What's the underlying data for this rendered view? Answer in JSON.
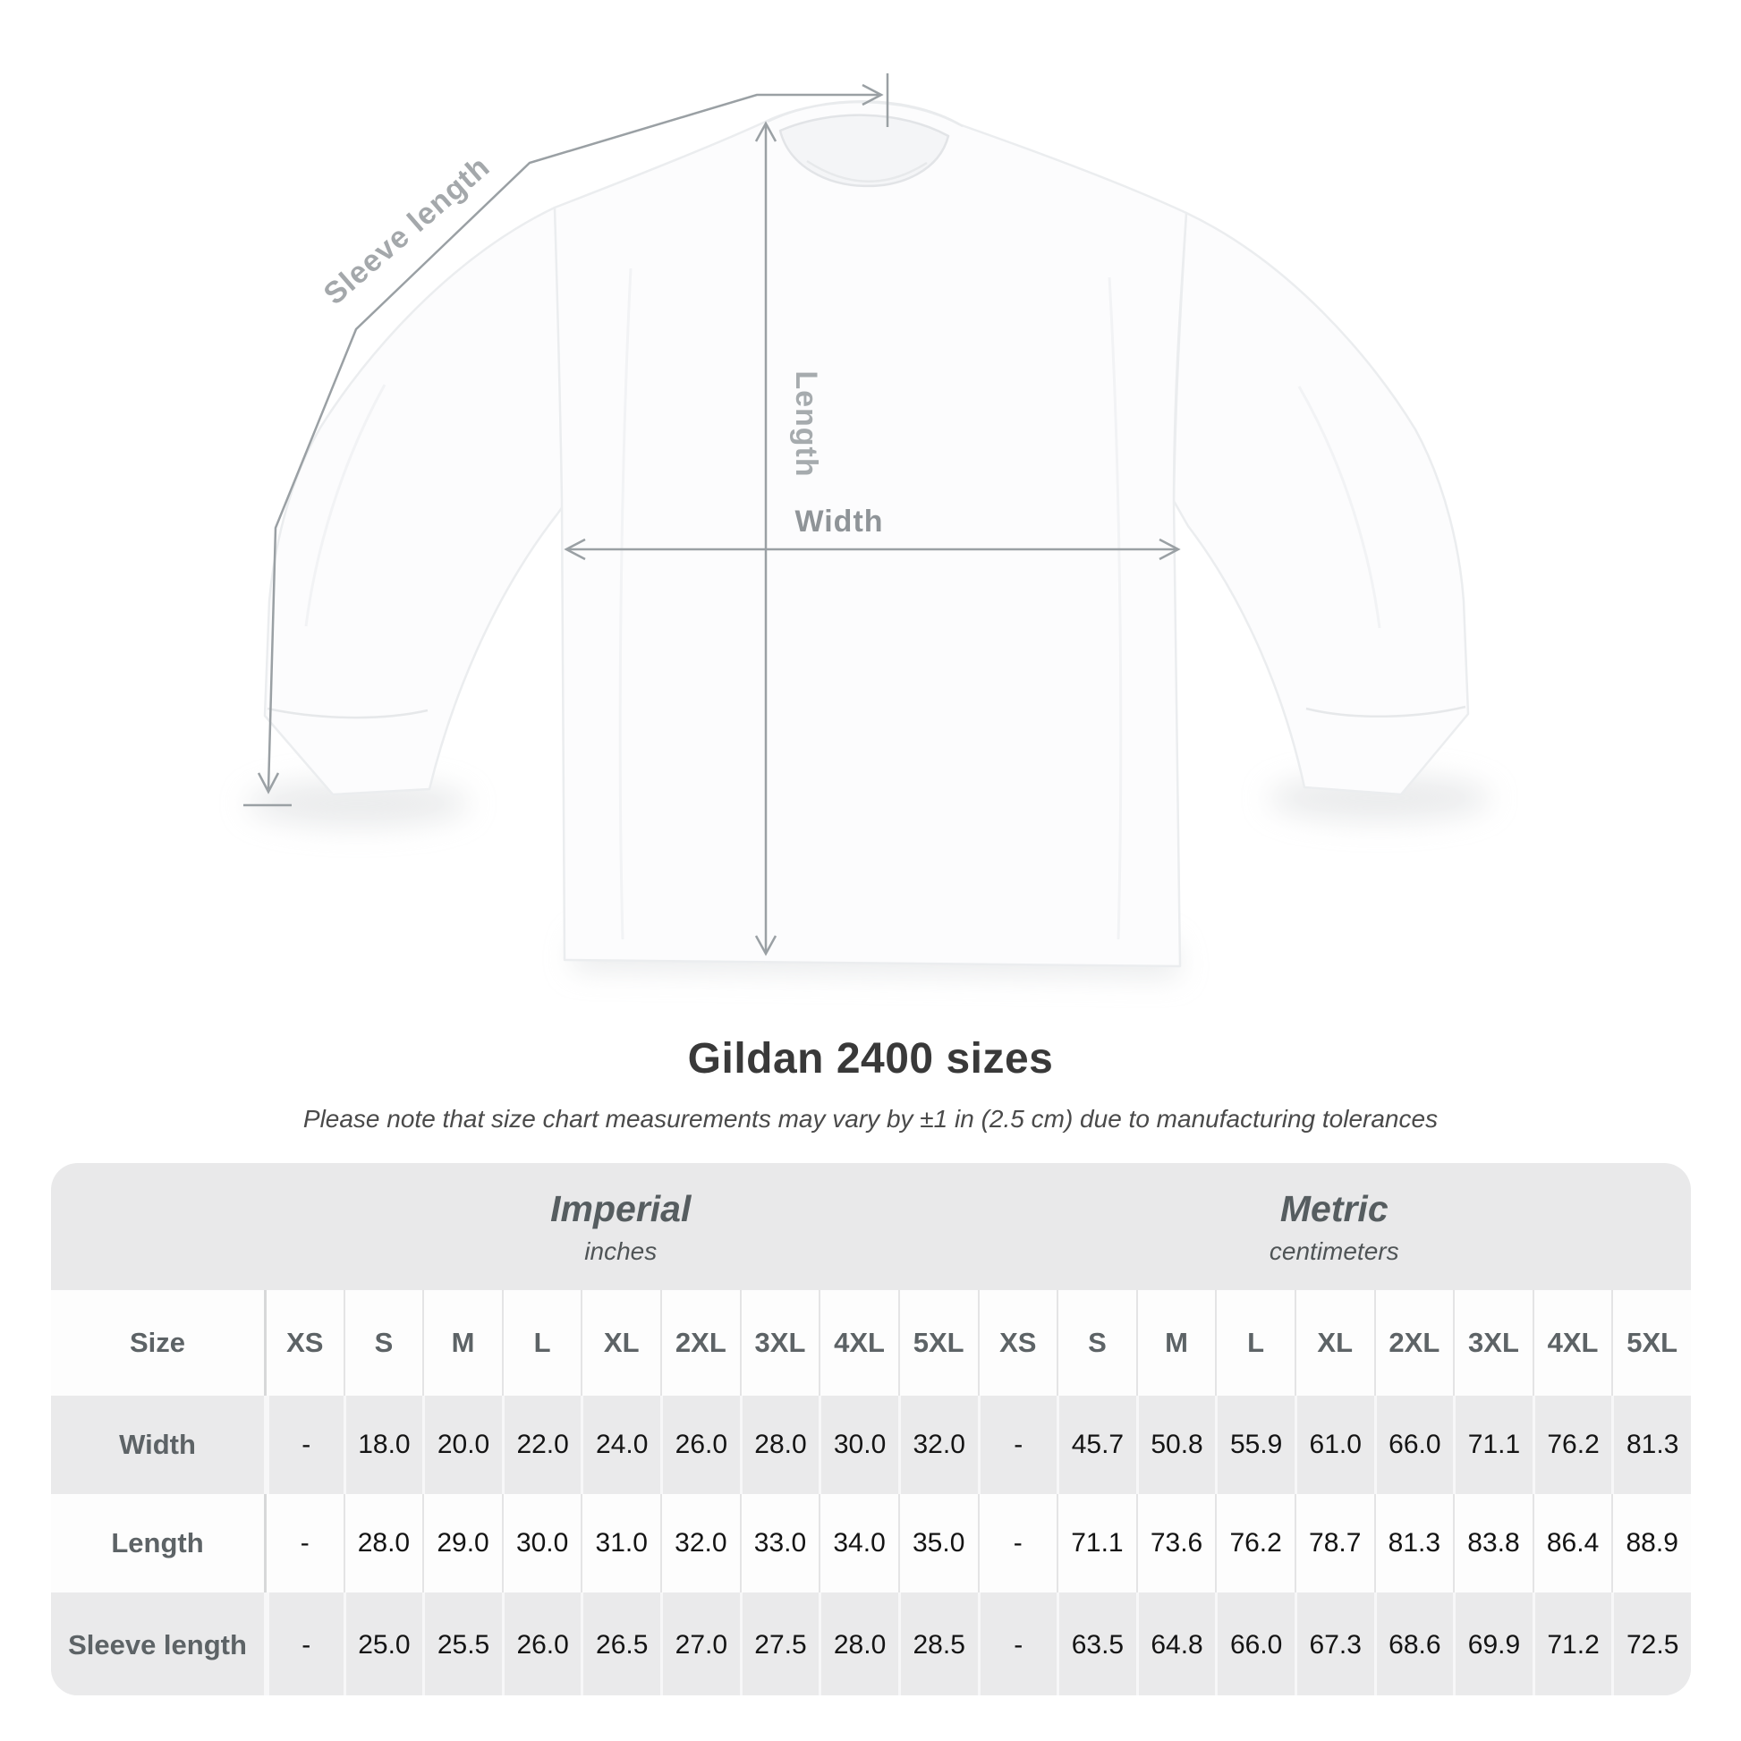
{
  "diagram": {
    "labels": {
      "sleeve_length": "Sleeve length",
      "length": "Length",
      "width": "Width"
    }
  },
  "title": "Gildan 2400 sizes",
  "subtitle": "Please note that size chart measurements may vary by ±1 in (2.5 cm) due to manufacturing tolerances",
  "table": {
    "size_header_label": "Size",
    "groups": [
      {
        "name": "Imperial",
        "unit": "inches"
      },
      {
        "name": "Metric",
        "unit": "centimeters"
      }
    ],
    "sizes": [
      "XS",
      "S",
      "M",
      "L",
      "XL",
      "2XL",
      "3XL",
      "4XL",
      "5XL"
    ],
    "rows": [
      {
        "label": "Width",
        "imperial": [
          "-",
          "18.0",
          "20.0",
          "22.0",
          "24.0",
          "26.0",
          "28.0",
          "30.0",
          "32.0"
        ],
        "metric": [
          "-",
          "45.7",
          "50.8",
          "55.9",
          "61.0",
          "66.0",
          "71.1",
          "76.2",
          "81.3"
        ]
      },
      {
        "label": "Length",
        "imperial": [
          "-",
          "28.0",
          "29.0",
          "30.0",
          "31.0",
          "32.0",
          "33.0",
          "34.0",
          "35.0"
        ],
        "metric": [
          "-",
          "71.1",
          "73.6",
          "76.2",
          "78.7",
          "81.3",
          "83.8",
          "86.4",
          "88.9"
        ]
      },
      {
        "label": "Sleeve length",
        "imperial": [
          "-",
          "25.0",
          "25.5",
          "26.0",
          "26.5",
          "27.0",
          "27.5",
          "28.0",
          "28.5"
        ],
        "metric": [
          "-",
          "63.5",
          "64.8",
          "66.0",
          "67.3",
          "68.6",
          "69.9",
          "71.2",
          "72.5"
        ]
      }
    ]
  },
  "chart_data": {
    "type": "table",
    "title": "Gildan 2400 sizes",
    "groups": [
      "Imperial (inches)",
      "Metric (centimeters)"
    ],
    "sizes": [
      "XS",
      "S",
      "M",
      "L",
      "XL",
      "2XL",
      "3XL",
      "4XL",
      "5XL"
    ],
    "rows": [
      {
        "label": "Width",
        "imperial": [
          null,
          18.0,
          20.0,
          22.0,
          24.0,
          26.0,
          28.0,
          30.0,
          32.0
        ],
        "metric": [
          null,
          45.7,
          50.8,
          55.9,
          61.0,
          66.0,
          71.1,
          76.2,
          81.3
        ]
      },
      {
        "label": "Length",
        "imperial": [
          null,
          28.0,
          29.0,
          30.0,
          31.0,
          32.0,
          33.0,
          34.0,
          35.0
        ],
        "metric": [
          null,
          71.1,
          73.6,
          76.2,
          78.7,
          81.3,
          83.8,
          86.4,
          88.9
        ]
      },
      {
        "label": "Sleeve length",
        "imperial": [
          null,
          25.0,
          25.5,
          26.0,
          26.5,
          27.0,
          27.5,
          28.0,
          28.5
        ],
        "metric": [
          null,
          63.5,
          64.8,
          66.0,
          67.3,
          68.6,
          69.9,
          71.2,
          72.5
        ]
      }
    ]
  }
}
